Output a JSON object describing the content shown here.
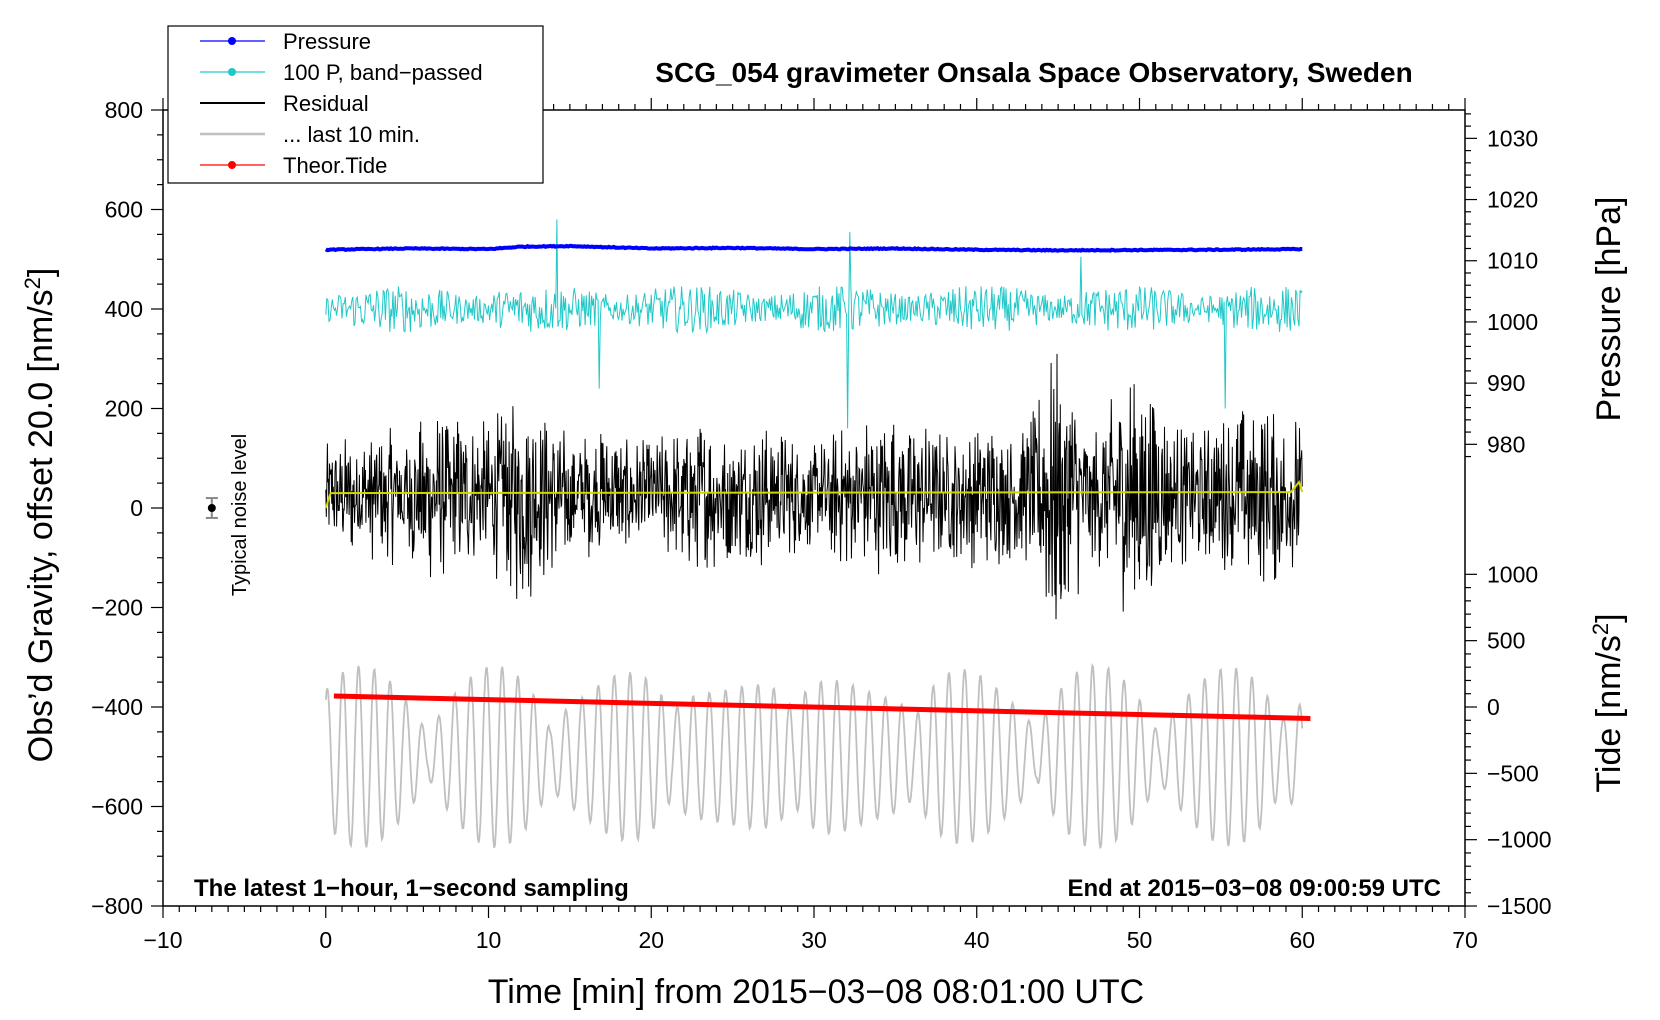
{
  "chart_data": {
    "type": "line",
    "title": "SCG_054 gravimeter Onsala Space Observatory, Sweden",
    "xlabel": "Time [min] from 2015−03−08 08:01:00 UTC",
    "ylabel_left": "Obs’d Gravity, offset 20.0 [nm/s",
    "ylabel_left_sup": "2",
    "ylabel_left_end": "]",
    "ylabel_right_pressure": "Pressure [hPa]",
    "ylabel_right_tide": "Tide [nm/s",
    "ylabel_right_tide_sup": "2",
    "ylabel_right_tide_end": "]",
    "xlim": [
      -10,
      70
    ],
    "ylim": [
      -800,
      800
    ],
    "x_ticks": [
      {
        "v": -10,
        "label": "−10"
      },
      {
        "v": 0,
        "label": "0"
      },
      {
        "v": 10,
        "label": "10"
      },
      {
        "v": 20,
        "label": "20"
      },
      {
        "v": 30,
        "label": "30"
      },
      {
        "v": 40,
        "label": "40"
      },
      {
        "v": 50,
        "label": "50"
      },
      {
        "v": 60,
        "label": "60"
      },
      {
        "v": 70,
        "label": "70"
      }
    ],
    "y_ticks": [
      {
        "v": 800,
        "label": "800"
      },
      {
        "v": 600,
        "label": "600"
      },
      {
        "v": 400,
        "label": "400"
      },
      {
        "v": 200,
        "label": "200"
      },
      {
        "v": 0,
        "label": "0"
      },
      {
        "v": -200,
        "label": "−200"
      },
      {
        "v": -400,
        "label": "−400"
      },
      {
        "v": -600,
        "label": "−600"
      },
      {
        "v": -800,
        "label": "−800"
      }
    ],
    "pressure_axis": {
      "ref": {
        "hPa": 1000,
        "gravity": 374
      },
      "gravity_per_hPa": 12.3,
      "ticks": [
        {
          "v": 1030,
          "label": "1030"
        },
        {
          "v": 1020,
          "label": "1020"
        },
        {
          "v": 1010,
          "label": "1010"
        },
        {
          "v": 1000,
          "label": "1000"
        },
        {
          "v": 990,
          "label": "990"
        },
        {
          "v": 980,
          "label": "980"
        }
      ]
    },
    "tide_axis": {
      "ref": {
        "tide": 0,
        "gravity": -400
      },
      "gravity_per_unit": 0.2667,
      "ticks": [
        {
          "v": 1000,
          "label": "1000"
        },
        {
          "v": 500,
          "label": "500"
        },
        {
          "v": 0,
          "label": "0"
        },
        {
          "v": -500,
          "label": "−500"
        },
        {
          "v": -1000,
          "label": "−1000"
        },
        {
          "v": -1500,
          "label": "−1500"
        }
      ]
    },
    "series": [
      {
        "name": "Pressure",
        "color": "#0000ff",
        "marker": true,
        "pressure_hPa": [
          1011.8,
          1012.0,
          1011.9,
          1012.3,
          1012.4,
          1012.0,
          1012.1,
          1011.9,
          1012.0,
          1011.8,
          1011.7,
          1011.8,
          1011.9
        ],
        "x": [
          0,
          5,
          10,
          12,
          15,
          20,
          25,
          30,
          35,
          40,
          45,
          55,
          60
        ]
      },
      {
        "name": "100 P, band−passed",
        "color": "#20c8c8",
        "marker": true,
        "baseline": 400,
        "amplitude": 40
      },
      {
        "name": "Residual",
        "color": "#000000",
        "marker": false,
        "baseline": 25,
        "envelope": [
          [
            0,
            110
          ],
          [
            5,
            150
          ],
          [
            6,
            180
          ],
          [
            10,
            150
          ],
          [
            12,
            230
          ],
          [
            15,
            130
          ],
          [
            17,
            140
          ],
          [
            20,
            110
          ],
          [
            23,
            170
          ],
          [
            25,
            130
          ],
          [
            27,
            150
          ],
          [
            30,
            110
          ],
          [
            32,
            150
          ],
          [
            35,
            170
          ],
          [
            38,
            130
          ],
          [
            40,
            150
          ],
          [
            43,
            140
          ],
          [
            45,
            330
          ],
          [
            47,
            130
          ],
          [
            50,
            290
          ],
          [
            52,
            150
          ],
          [
            55,
            160
          ],
          [
            57,
            190
          ],
          [
            60,
            170
          ]
        ]
      },
      {
        "name": "... last 10 min.",
        "color": "#c0c0c0",
        "marker": false,
        "baseline": -500,
        "amplitude": 160
      },
      {
        "name": "Theor.Tide",
        "color": "#ff0000",
        "marker": true,
        "x": [
          0.5,
          60.5
        ],
        "y": [
          -378,
          -423
        ]
      },
      {
        "name": "Median residual",
        "color": "#d4d400",
        "marker": false,
        "x": [
          0,
          0.3,
          59.3,
          59.8,
          60
        ],
        "y": [
          0,
          30,
          32,
          52,
          32
        ]
      }
    ],
    "legend": [
      "Pressure",
      "100 P, band−passed",
      "Residual",
      "... last 10 min.",
      "Theor.Tide"
    ],
    "legend_position": "top-left",
    "noise_level": {
      "x": -7,
      "y": 0,
      "err": 20,
      "label": "Typical noise level"
    },
    "annotations": {
      "bottom_left": "The latest 1−hour, 1−second sampling",
      "bottom_right": "End at 2015−03−08 09:00:59 UTC"
    }
  }
}
